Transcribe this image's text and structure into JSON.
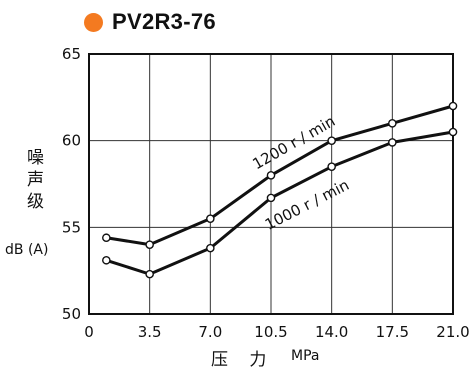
{
  "header": {
    "title": "PV2R3-76",
    "accent_color": "#f47a20"
  },
  "chart_data": {
    "type": "line",
    "title": "PV2R3-76",
    "ylabel_chars": [
      "噪",
      "声",
      "级"
    ],
    "yunit": "dB (A)",
    "xlabel": "压 力",
    "xunit": "MPa",
    "xlim": [
      0,
      21.0
    ],
    "ylim": [
      50,
      65
    ],
    "x_ticks": [
      "0",
      "3.5",
      "7.0",
      "10.5",
      "14.0",
      "17.5",
      "21.0"
    ],
    "y_ticks": [
      "50",
      "55",
      "60",
      "65"
    ],
    "grid": true,
    "series": [
      {
        "name": "1200 r / min",
        "x": [
          1.0,
          3.5,
          7.0,
          10.5,
          14.0,
          17.5,
          21.0
        ],
        "y": [
          54.4,
          54.0,
          55.5,
          58.0,
          60.0,
          61.0,
          62.0
        ]
      },
      {
        "name": "1000 r / min",
        "x": [
          1.0,
          3.5,
          7.0,
          10.5,
          14.0,
          17.5,
          21.0
        ],
        "y": [
          53.1,
          52.3,
          53.8,
          56.7,
          58.5,
          59.9,
          60.5
        ]
      }
    ]
  }
}
